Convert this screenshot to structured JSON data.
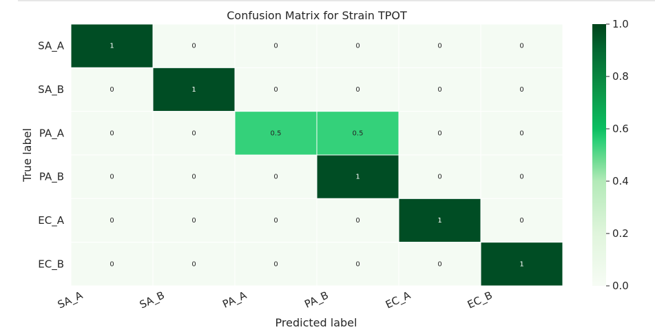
{
  "chart_data": {
    "type": "heatmap",
    "title": "Confusion Matrix for Strain TPOT",
    "xlabel": "Predicted label",
    "ylabel": "True label",
    "x_categories": [
      "SA_A",
      "SA_B",
      "PA_A",
      "PA_B",
      "EC_A",
      "EC_B"
    ],
    "y_categories": [
      "SA_A",
      "SA_B",
      "PA_A",
      "PA_B",
      "EC_A",
      "EC_B"
    ],
    "values": [
      [
        1,
        0,
        0,
        0,
        0,
        0
      ],
      [
        0,
        1,
        0,
        0,
        0,
        0
      ],
      [
        0,
        0,
        0.5,
        0.5,
        0,
        0
      ],
      [
        0,
        0,
        0,
        1,
        0,
        0
      ],
      [
        0,
        0,
        0,
        0,
        1,
        0
      ],
      [
        0,
        0,
        0,
        0,
        0,
        1
      ]
    ],
    "cell_labels": [
      [
        "1",
        "0",
        "0",
        "0",
        "0",
        "0"
      ],
      [
        "0",
        "1",
        "0",
        "0",
        "0",
        "0"
      ],
      [
        "0",
        "0",
        "0.5",
        "0.5",
        "0",
        "0"
      ],
      [
        "0",
        "0",
        "0",
        "1",
        "0",
        "0"
      ],
      [
        "0",
        "0",
        "0",
        "0",
        "1",
        "0"
      ],
      [
        "0",
        "0",
        "0",
        "0",
        "0",
        "1"
      ]
    ],
    "colorbar": {
      "range": [
        0.0,
        1.0
      ],
      "ticks": [
        "0.0",
        "0.2",
        "0.4",
        "0.6",
        "0.8",
        "1.0"
      ],
      "colormap": "Greens"
    },
    "colors": {
      "low": "#f4fbf3",
      "mid": "#34d17a",
      "high": "#004d24"
    }
  }
}
